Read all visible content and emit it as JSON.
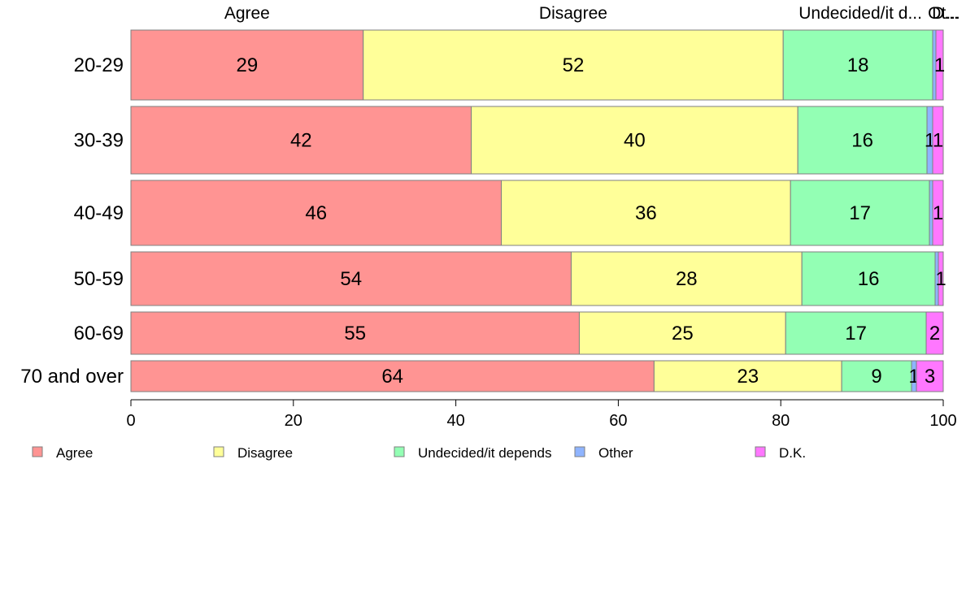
{
  "chart_data": {
    "type": "bar",
    "orientation": "horizontal",
    "stacked": true,
    "categories": [
      "20-29",
      "30-39",
      "40-49",
      "50-59",
      "60-69",
      "70 and over"
    ],
    "series": [
      {
        "name": "Agree",
        "color": "#ff9493",
        "values": [
          28.6,
          41.9,
          45.6,
          54.2,
          55.2,
          64.4
        ]
      },
      {
        "name": "Disagree",
        "color": "#ffff99",
        "values": [
          51.7,
          40.2,
          35.6,
          28.4,
          25.4,
          23.1
        ]
      },
      {
        "name": "Undecided/it depends",
        "color": "#93ffb4",
        "values": [
          18.4,
          15.9,
          17.1,
          16.4,
          17.3,
          8.6
        ]
      },
      {
        "name": "Other",
        "color": "#8fb4ff",
        "values": [
          0.4,
          0.7,
          0.4,
          0.4,
          0.0,
          0.6
        ]
      },
      {
        "name": "D.K.",
        "color": "#ff77ff",
        "values": [
          0.9,
          1.3,
          1.3,
          0.6,
          2.1,
          3.3
        ]
      }
    ],
    "data_labels": [
      [
        "29",
        "52",
        "18",
        "",
        "1"
      ],
      [
        "42",
        "40",
        "16",
        "1",
        "1"
      ],
      [
        "46",
        "36",
        "17",
        "",
        "1"
      ],
      [
        "54",
        "28",
        "16",
        "",
        "1"
      ],
      [
        "55",
        "25",
        "17",
        "",
        "2"
      ],
      [
        "64",
        "23",
        "9",
        "1",
        "3"
      ]
    ],
    "column_headers": [
      "Agree",
      "Disagree",
      "Undecided/it d...",
      "Ot...",
      "D..."
    ],
    "xlim": [
      0,
      100
    ],
    "xticks": [
      0,
      20,
      40,
      60,
      80,
      100
    ],
    "grid": false,
    "legend_position": "bottom"
  }
}
